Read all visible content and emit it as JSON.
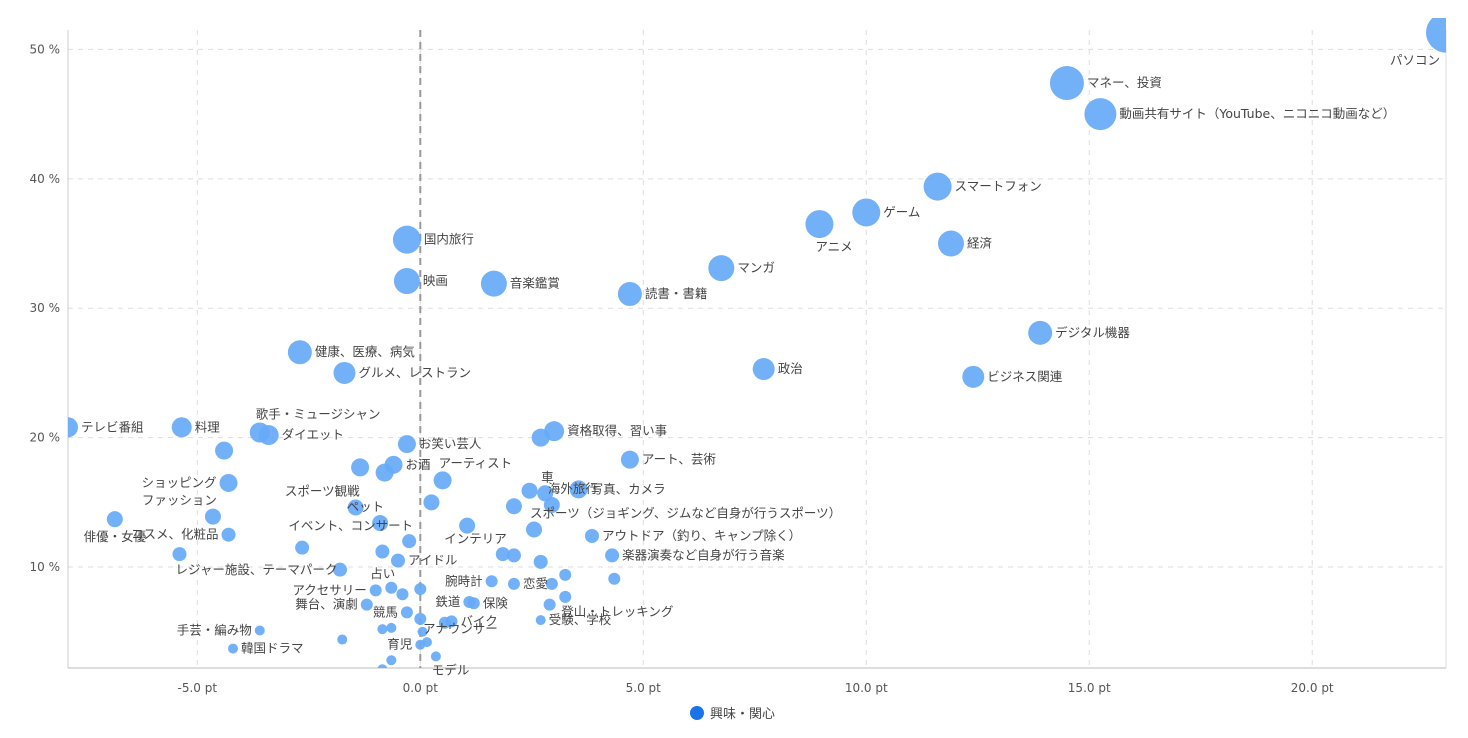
{
  "chart_data": {
    "type": "scatter",
    "title": "",
    "xlabel": "",
    "ylabel": "",
    "xlim": [
      -7.9,
      23
    ],
    "ylim": [
      2.2,
      51.5
    ],
    "x_ticks": [
      -5,
      0,
      5,
      10,
      15,
      20
    ],
    "x_tick_labels": [
      "-5.0 pt",
      "0.0 pt",
      "5.0 pt",
      "10.0 pt",
      "15.0 pt",
      "20.0 pt"
    ],
    "y_ticks": [
      10,
      20,
      30,
      40,
      50
    ],
    "y_tick_labels": [
      "10 %",
      "20 %",
      "30 %",
      "40 %",
      "50 %"
    ],
    "reference_line_x": 0,
    "grid": true,
    "legend": {
      "position": "bottom",
      "entries": [
        "興味・関心"
      ]
    },
    "series": [
      {
        "name": "興味・関心",
        "color": "#66a9f7",
        "legend_color": "#1a73e8",
        "points": [
          {
            "label": "パソコン",
            "x": 23.0,
            "y": 51.3,
            "r": 20,
            "anchor": "below-left"
          },
          {
            "label": "マネー、投資",
            "x": 14.5,
            "y": 47.4,
            "r": 17,
            "anchor": "right"
          },
          {
            "label": "動画共有サイト（YouTube、ニコニコ動画など）",
            "x": 15.25,
            "y": 45.0,
            "r": 16,
            "anchor": "right"
          },
          {
            "label": "スマートフォン",
            "x": 11.6,
            "y": 39.4,
            "r": 14,
            "anchor": "right"
          },
          {
            "label": "ゲーム",
            "x": 10.0,
            "y": 37.4,
            "r": 14,
            "anchor": "right"
          },
          {
            "label": "アニメ",
            "x": 8.95,
            "y": 36.5,
            "r": 14,
            "anchor": "below-right"
          },
          {
            "label": "経済",
            "x": 11.9,
            "y": 35.0,
            "r": 13,
            "anchor": "right"
          },
          {
            "label": "国内旅行",
            "x": -0.3,
            "y": 35.3,
            "r": 14,
            "anchor": "right"
          },
          {
            "label": "マンガ",
            "x": 6.75,
            "y": 33.1,
            "r": 13,
            "anchor": "right"
          },
          {
            "label": "映画",
            "x": -0.3,
            "y": 32.1,
            "r": 13,
            "anchor": "right"
          },
          {
            "label": "音楽鑑賞",
            "x": 1.65,
            "y": 31.9,
            "r": 13,
            "anchor": "right"
          },
          {
            "label": "読書・書籍",
            "x": 4.7,
            "y": 31.1,
            "r": 12,
            "anchor": "right"
          },
          {
            "label": "デジタル機器",
            "x": 13.9,
            "y": 28.1,
            "r": 12,
            "anchor": "right"
          },
          {
            "label": "健康、医療、病気",
            "x": -2.7,
            "y": 26.6,
            "r": 12,
            "anchor": "right"
          },
          {
            "label": "政治",
            "x": 7.7,
            "y": 25.3,
            "r": 11,
            "anchor": "right"
          },
          {
            "label": "ビジネス関連",
            "x": 12.4,
            "y": 24.7,
            "r": 11,
            "anchor": "right"
          },
          {
            "label": "グルメ、レストラン",
            "x": -1.7,
            "y": 25.0,
            "r": 11,
            "anchor": "right"
          },
          {
            "label": "テレビ番組",
            "x": -7.9,
            "y": 20.8,
            "r": 10,
            "anchor": "right"
          },
          {
            "label": "料理",
            "x": -5.35,
            "y": 20.8,
            "r": 10,
            "anchor": "right"
          },
          {
            "label": "歌手・ミュージシャン",
            "x": -3.6,
            "y": 20.4,
            "r": 10,
            "anchor": "above-right"
          },
          {
            "label": "ダイエット",
            "x": -3.4,
            "y": 20.2,
            "r": 10,
            "anchor": "right"
          },
          {
            "label": "資格取得、習い事",
            "x": 3.0,
            "y": 20.5,
            "r": 10,
            "anchor": "right"
          },
          {
            "label": "",
            "x": 2.7,
            "y": 20.0,
            "r": 9
          },
          {
            "label": "お笑い芸人",
            "x": -0.3,
            "y": 19.5,
            "r": 9,
            "anchor": "right"
          },
          {
            "label": "",
            "x": -4.4,
            "y": 19.0,
            "r": 9
          },
          {
            "label": "アート、芸術",
            "x": 4.7,
            "y": 18.3,
            "r": 9,
            "anchor": "right"
          },
          {
            "label": "お酒",
            "x": -0.6,
            "y": 17.9,
            "r": 9,
            "anchor": "right"
          },
          {
            "label": "",
            "x": -1.35,
            "y": 17.7,
            "r": 9
          },
          {
            "label": "",
            "x": -0.8,
            "y": 17.3,
            "r": 9
          },
          {
            "label": "アーティスト",
            "x": 0.5,
            "y": 16.7,
            "r": 9,
            "anchor": "above-right"
          },
          {
            "label": "ショッピング",
            "x": -4.3,
            "y": 16.5,
            "r": 9,
            "anchor": "left"
          },
          {
            "label": "写真、カメラ",
            "x": 3.55,
            "y": 16.0,
            "r": 9,
            "anchor": "right"
          },
          {
            "label": "",
            "x": 2.45,
            "y": 15.9,
            "r": 8
          },
          {
            "label": "車",
            "x": 2.8,
            "y": 15.7,
            "r": 8,
            "anchor": "above-right"
          },
          {
            "label": "",
            "x": 0.25,
            "y": 15.0,
            "r": 8
          },
          {
            "label": "海外旅行",
            "x": 2.95,
            "y": 14.8,
            "r": 8,
            "anchor": "above-right"
          },
          {
            "label": "",
            "x": 2.1,
            "y": 14.7,
            "r": 8
          },
          {
            "label": "スポーツ観戦",
            "x": -1.45,
            "y": 14.6,
            "r": 8,
            "anchor": "above-left"
          },
          {
            "label": "ファッション",
            "x": -4.65,
            "y": 13.9,
            "r": 8,
            "anchor": "above-left"
          },
          {
            "label": "俳優・女優",
            "x": -6.85,
            "y": 13.7,
            "r": 8,
            "anchor": "below"
          },
          {
            "label": "ペット",
            "x": -0.9,
            "y": 13.4,
            "r": 8,
            "anchor": "above-left"
          },
          {
            "label": "",
            "x": 1.05,
            "y": 13.2,
            "r": 8
          },
          {
            "label": "スポーツ（ジョギング、ジムなど自身が行うスポーツ）",
            "x": 2.55,
            "y": 12.9,
            "r": 8,
            "anchor": "above-right"
          },
          {
            "label": "コスメ、化粧品",
            "x": -4.3,
            "y": 12.5,
            "r": 7,
            "anchor": "left"
          },
          {
            "label": "アウトドア（釣り、キャンプ除く）",
            "x": 3.85,
            "y": 12.4,
            "r": 7,
            "anchor": "right"
          },
          {
            "label": "イベント、コンサート",
            "x": -0.25,
            "y": 12.0,
            "r": 7,
            "anchor": "above-left"
          },
          {
            "label": "",
            "x": -2.65,
            "y": 11.5,
            "r": 7
          },
          {
            "label": "インテリア",
            "x": 1.85,
            "y": 11.0,
            "r": 7,
            "anchor": "above-left"
          },
          {
            "label": "",
            "x": -0.85,
            "y": 11.2,
            "r": 7
          },
          {
            "label": "レジャー施設、テーマパーク",
            "x": -5.4,
            "y": 11.0,
            "r": 7,
            "anchor": "below-right"
          },
          {
            "label": "楽器演奏など自身が行う音楽",
            "x": 4.3,
            "y": 10.9,
            "r": 7,
            "anchor": "right"
          },
          {
            "label": "",
            "x": 2.1,
            "y": 10.9,
            "r": 7
          },
          {
            "label": "アイドル",
            "x": -0.5,
            "y": 10.5,
            "r": 7,
            "anchor": "right"
          },
          {
            "label": "",
            "x": 2.7,
            "y": 10.4,
            "r": 7
          },
          {
            "label": "",
            "x": -1.8,
            "y": 9.8,
            "r": 7
          },
          {
            "label": "占い",
            "x": -0.65,
            "y": 8.4,
            "r": 6,
            "anchor": "above-left"
          },
          {
            "label": "",
            "x": 3.25,
            "y": 9.4,
            "r": 6
          },
          {
            "label": "",
            "x": 4.35,
            "y": 9.1,
            "r": 6
          },
          {
            "label": "腕時計",
            "x": 1.6,
            "y": 8.9,
            "r": 6,
            "anchor": "left"
          },
          {
            "label": "恋愛",
            "x": 2.1,
            "y": 8.7,
            "r": 6,
            "anchor": "right"
          },
          {
            "label": "",
            "x": 2.95,
            "y": 8.7,
            "r": 6
          },
          {
            "label": "アクセサリー",
            "x": -1.0,
            "y": 8.2,
            "r": 6,
            "anchor": "left"
          },
          {
            "label": "",
            "x": 0.0,
            "y": 8.3,
            "r": 6
          },
          {
            "label": "登山・トレッキング",
            "x": 3.25,
            "y": 7.7,
            "r": 6,
            "anchor": "below-right"
          },
          {
            "label": "",
            "x": -0.4,
            "y": 7.9,
            "r": 6
          },
          {
            "label": "鉄道",
            "x": 1.1,
            "y": 7.3,
            "r": 6,
            "anchor": "left"
          },
          {
            "label": "保険",
            "x": 1.2,
            "y": 7.2,
            "r": 6,
            "anchor": "right"
          },
          {
            "label": "",
            "x": 2.9,
            "y": 7.1,
            "r": 6
          },
          {
            "label": "舞台、演劇",
            "x": -1.2,
            "y": 7.1,
            "r": 6,
            "anchor": "left"
          },
          {
            "label": "競馬",
            "x": -0.3,
            "y": 6.5,
            "r": 6,
            "anchor": "left"
          },
          {
            "label": "",
            "x": 0.0,
            "y": 6.0,
            "r": 6
          },
          {
            "label": "受験、学校",
            "x": 2.7,
            "y": 5.9,
            "r": 5,
            "anchor": "right"
          },
          {
            "label": "バイク",
            "x": 0.7,
            "y": 5.8,
            "r": 6,
            "anchor": "right"
          },
          {
            "label": "",
            "x": 0.55,
            "y": 5.7,
            "r": 6
          },
          {
            "label": "手芸・編み物",
            "x": -3.6,
            "y": 5.1,
            "r": 5,
            "anchor": "left"
          },
          {
            "label": "",
            "x": -0.85,
            "y": 5.2,
            "r": 5
          },
          {
            "label": "",
            "x": -0.65,
            "y": 5.3,
            "r": 5
          },
          {
            "label": "",
            "x": 0.05,
            "y": 5.0,
            "r": 5
          },
          {
            "label": "アナウンサー",
            "x": 0.15,
            "y": 4.2,
            "r": 5,
            "anchor": "above-right"
          },
          {
            "label": "育児",
            "x": 0.0,
            "y": 4.0,
            "r": 5,
            "anchor": "left"
          },
          {
            "label": "",
            "x": -1.75,
            "y": 4.4,
            "r": 5
          },
          {
            "label": "韓国ドラマ",
            "x": -4.2,
            "y": 3.7,
            "r": 5,
            "anchor": "right"
          },
          {
            "label": "モデル",
            "x": 0.35,
            "y": 3.1,
            "r": 5,
            "anchor": "below-right"
          },
          {
            "label": "",
            "x": -0.65,
            "y": 2.8,
            "r": 5
          },
          {
            "label": "",
            "x": -0.85,
            "y": 2.1,
            "r": 5
          }
        ]
      }
    ]
  }
}
